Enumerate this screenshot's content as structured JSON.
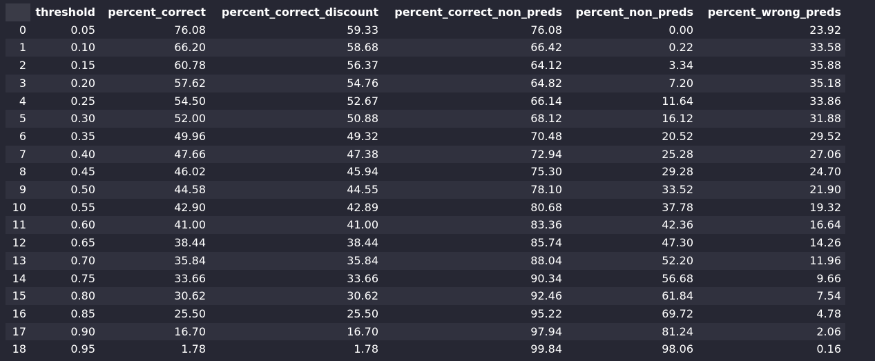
{
  "table": {
    "columns": [
      "",
      "threshold",
      "percent_correct",
      "percent_correct_discount",
      "percent_correct_non_preds",
      "percent_non_preds",
      "percent_wrong_preds"
    ],
    "rows": [
      [
        "0",
        "0.05",
        "76.08",
        "59.33",
        "76.08",
        "0.00",
        "23.92"
      ],
      [
        "1",
        "0.10",
        "66.20",
        "58.68",
        "66.42",
        "0.22",
        "33.58"
      ],
      [
        "2",
        "0.15",
        "60.78",
        "56.37",
        "64.12",
        "3.34",
        "35.88"
      ],
      [
        "3",
        "0.20",
        "57.62",
        "54.76",
        "64.82",
        "7.20",
        "35.18"
      ],
      [
        "4",
        "0.25",
        "54.50",
        "52.67",
        "66.14",
        "11.64",
        "33.86"
      ],
      [
        "5",
        "0.30",
        "52.00",
        "50.88",
        "68.12",
        "16.12",
        "31.88"
      ],
      [
        "6",
        "0.35",
        "49.96",
        "49.32",
        "70.48",
        "20.52",
        "29.52"
      ],
      [
        "7",
        "0.40",
        "47.66",
        "47.38",
        "72.94",
        "25.28",
        "27.06"
      ],
      [
        "8",
        "0.45",
        "46.02",
        "45.94",
        "75.30",
        "29.28",
        "24.70"
      ],
      [
        "9",
        "0.50",
        "44.58",
        "44.55",
        "78.10",
        "33.52",
        "21.90"
      ],
      [
        "10",
        "0.55",
        "42.90",
        "42.89",
        "80.68",
        "37.78",
        "19.32"
      ],
      [
        "11",
        "0.60",
        "41.00",
        "41.00",
        "83.36",
        "42.36",
        "16.64"
      ],
      [
        "12",
        "0.65",
        "38.44",
        "38.44",
        "85.74",
        "47.30",
        "14.26"
      ],
      [
        "13",
        "0.70",
        "35.84",
        "35.84",
        "88.04",
        "52.20",
        "11.96"
      ],
      [
        "14",
        "0.75",
        "33.66",
        "33.66",
        "90.34",
        "56.68",
        "9.66"
      ],
      [
        "15",
        "0.80",
        "30.62",
        "30.62",
        "92.46",
        "61.84",
        "7.54"
      ],
      [
        "16",
        "0.85",
        "25.50",
        "25.50",
        "95.22",
        "69.72",
        "4.78"
      ],
      [
        "17",
        "0.90",
        "16.70",
        "16.70",
        "97.94",
        "81.24",
        "2.06"
      ],
      [
        "18",
        "0.95",
        "1.78",
        "1.78",
        "99.84",
        "98.06",
        "0.16"
      ]
    ]
  }
}
